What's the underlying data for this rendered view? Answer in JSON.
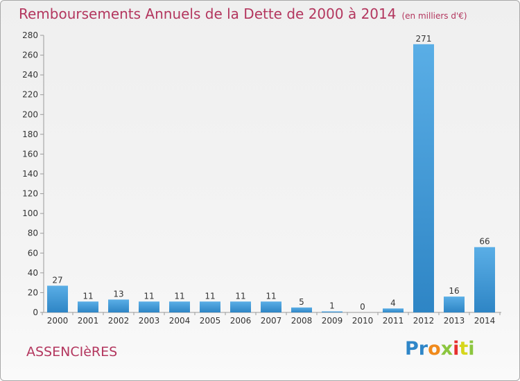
{
  "title": "Remboursements Annuels de la Dette de 2000 à 2014",
  "unit": "(en milliers d'€)",
  "city": "ASSENCIèRES",
  "logo": {
    "letters": [
      "P",
      "r",
      "o",
      "x",
      "i",
      "t",
      "i"
    ],
    "colors": [
      "#2f86c8",
      "#2f86c8",
      "#f08a1c",
      "#8cc63f",
      "#e6302f",
      "#d6d61c",
      "#8cc63f"
    ]
  },
  "colors": {
    "bar_light": "#5aaee6",
    "bar_dark": "#2e85c5",
    "title": "#b3365e"
  },
  "chart_data": {
    "type": "bar",
    "title": "Remboursements Annuels de la Dette de 2000 à 2014",
    "subtitle": "(en milliers d'€)",
    "categories": [
      "2000",
      "2001",
      "2002",
      "2003",
      "2004",
      "2005",
      "2006",
      "2007",
      "2008",
      "2009",
      "2010",
      "2011",
      "2012",
      "2013",
      "2014"
    ],
    "values": [
      27,
      11,
      13,
      11,
      11,
      11,
      11,
      11,
      5,
      1,
      0,
      4,
      271,
      16,
      66
    ],
    "ylim": [
      0,
      280
    ],
    "yticks": [
      0,
      20,
      40,
      60,
      80,
      100,
      120,
      140,
      160,
      180,
      200,
      220,
      240,
      260,
      280
    ],
    "grid": false,
    "legend": "none"
  }
}
